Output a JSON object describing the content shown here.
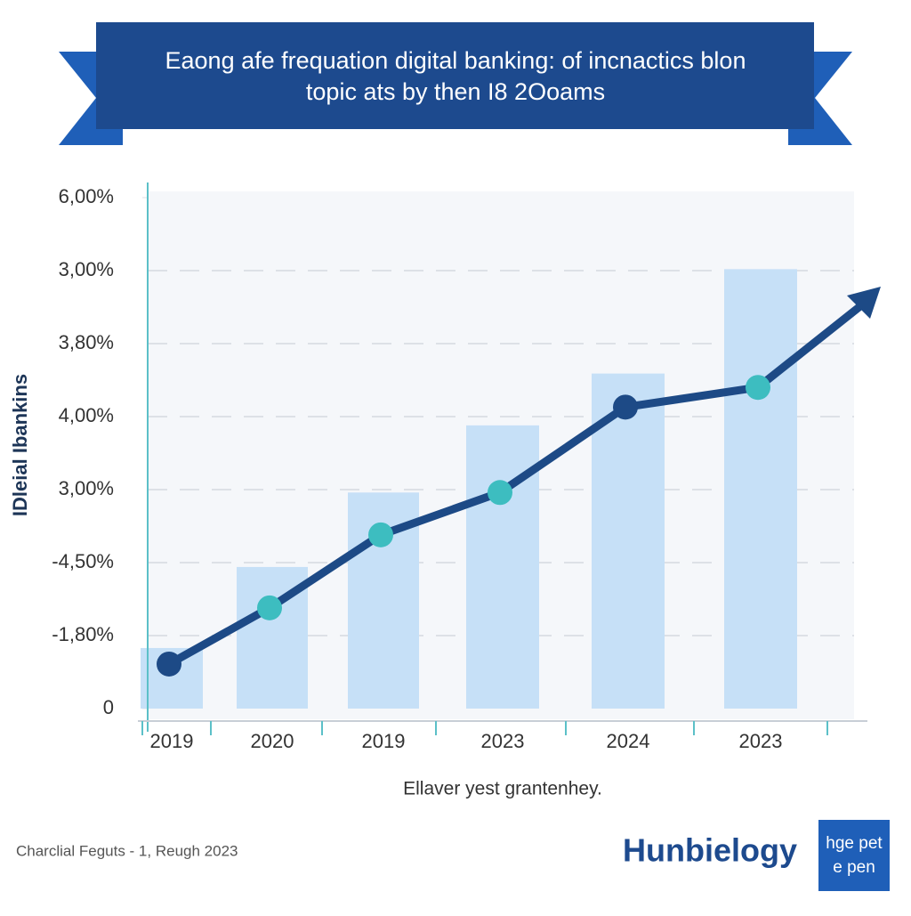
{
  "chart_data": {
    "type": "bar_line",
    "title": [
      "Eaong afe frequation digital banking: of incnactics blon",
      "topic ats by then I8 2Ooams"
    ],
    "y_label": "IDleial Ibankins",
    "x_label": "Ellaver yest grantenhey.",
    "categories": [
      "2019",
      "2020",
      "2019",
      "2023",
      "2024",
      "2023"
    ],
    "ylim": [
      0,
      7
    ],
    "yticks": [
      0,
      {
        "value": 1,
        "label": "-1,80%"
      },
      {
        "value": 2,
        "label": "-4,50%"
      },
      {
        "value": 3,
        "label": "3,00%"
      },
      {
        "value": 4,
        "label": "4,00%"
      },
      {
        "value": 5,
        "label": "3,80%"
      },
      {
        "value": 6,
        "label": "3,00%"
      },
      {
        "value": 7,
        "label": "6,00%"
      }
    ],
    "grid": true,
    "series": [
      {
        "type": "bar",
        "color": "#c6e0f7",
        "values": [
          0.83,
          1.94,
          2.96,
          3.88,
          4.59,
          6.02
        ]
      },
      {
        "type": "line",
        "color": "#1d4a86",
        "values": [
          0.61,
          1.38,
          2.38,
          2.96,
          4.13,
          4.4
        ],
        "marker_colors": [
          "#1d4a86",
          "#3dbdc0",
          "#3dbdc0",
          "#3dbdc0",
          "#1d4a86",
          "#3dbdc0"
        ]
      }
    ]
  },
  "footer": {
    "source": "Charclial Feguts - 1, Reugh 2023",
    "brand": "Hunbielogy",
    "logo": [
      "hge pet",
      "e pen"
    ]
  }
}
